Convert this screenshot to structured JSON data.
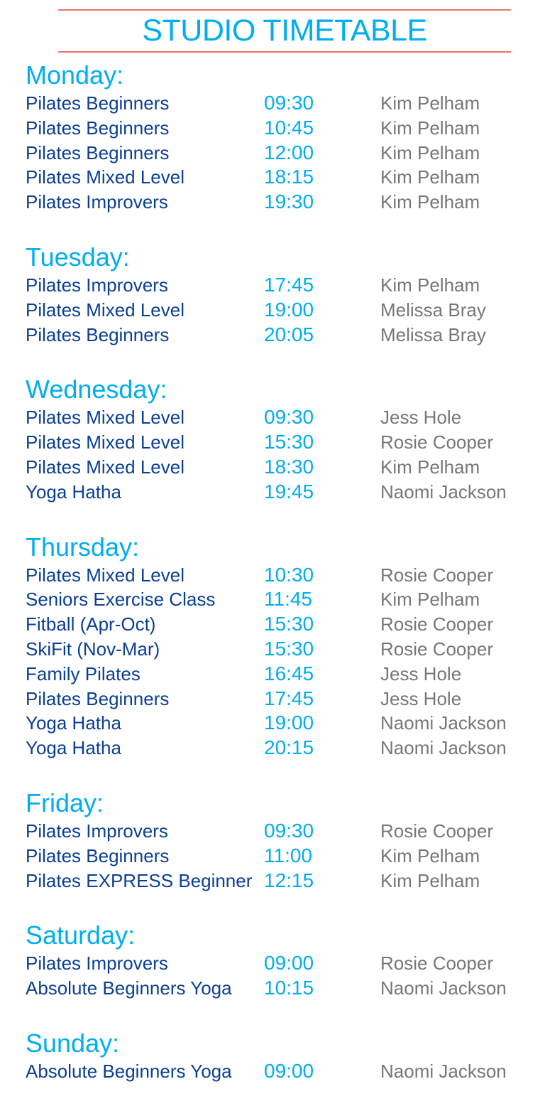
{
  "title": "STUDIO TIMETABLE",
  "colors": {
    "accent": "#00aeef",
    "class": "#0b3f94",
    "instructor": "#777777",
    "rule": "#f07070"
  },
  "days": [
    {
      "name": "Monday:",
      "classes": [
        {
          "class": "Pilates Beginners",
          "time": "09:30",
          "instructor": "Kim Pelham"
        },
        {
          "class": "Pilates Beginners",
          "time": "10:45",
          "instructor": "Kim Pelham"
        },
        {
          "class": "Pilates Beginners",
          "time": "12:00",
          "instructor": "Kim Pelham"
        },
        {
          "class": "Pilates Mixed Level",
          "time": "18:15",
          "instructor": "Kim Pelham"
        },
        {
          "class": "Pilates Improvers",
          "time": "19:30",
          "instructor": "Kim Pelham"
        }
      ]
    },
    {
      "name": "Tuesday:",
      "classes": [
        {
          "class": "Pilates Improvers",
          "time": "17:45",
          "instructor": "Kim Pelham"
        },
        {
          "class": "Pilates Mixed Level",
          "time": "19:00",
          "instructor": "Melissa Bray"
        },
        {
          "class": "Pilates Beginners",
          "time": "20:05",
          "instructor": "Melissa Bray"
        }
      ]
    },
    {
      "name": "Wednesday:",
      "classes": [
        {
          "class": "Pilates Mixed Level",
          "time": "09:30",
          "instructor": "Jess Hole"
        },
        {
          "class": "Pilates Mixed Level",
          "time": "15:30",
          "instructor": "Rosie Cooper"
        },
        {
          "class": "Pilates Mixed Level",
          "time": "18:30",
          "instructor": "Kim Pelham"
        },
        {
          "class": "Yoga Hatha",
          "time": "19:45",
          "instructor": "Naomi Jackson"
        }
      ]
    },
    {
      "name": "Thursday:",
      "classes": [
        {
          "class": "Pilates Mixed Level",
          "time": "10:30",
          "instructor": "Rosie Cooper"
        },
        {
          "class": "Seniors Exercise Class",
          "time": "11:45",
          "instructor": "Kim Pelham"
        },
        {
          "class": "Fitball (Apr-Oct)",
          "time": "15:30",
          "instructor": "Rosie Cooper"
        },
        {
          "class": "SkiFit (Nov-Mar)",
          "time": "15:30",
          "instructor": "Rosie Cooper"
        },
        {
          "class": "Family Pilates",
          "time": "16:45",
          "instructor": "Jess Hole"
        },
        {
          "class": "Pilates Beginners",
          "time": "17:45",
          "instructor": "Jess Hole"
        },
        {
          "class": "Yoga Hatha",
          "time": "19:00",
          "instructor": "Naomi Jackson"
        },
        {
          "class": "Yoga Hatha",
          "time": "20:15",
          "instructor": "Naomi Jackson"
        }
      ]
    },
    {
      "name": "Friday:",
      "classes": [
        {
          "class": "Pilates Improvers",
          "time": "09:30",
          "instructor": "Rosie Cooper"
        },
        {
          "class": "Pilates Beginners",
          "time": "11:00",
          "instructor": "Kim Pelham"
        },
        {
          "class": "Pilates EXPRESS Beginner",
          "time": "12:15",
          "instructor": "Kim Pelham"
        }
      ]
    },
    {
      "name": "Saturday:",
      "classes": [
        {
          "class": "Pilates Improvers",
          "time": "09:00",
          "instructor": "Rosie Cooper"
        },
        {
          "class": "Absolute Beginners Yoga",
          "time": "10:15",
          "instructor": "Naomi Jackson"
        }
      ]
    },
    {
      "name": "Sunday:",
      "classes": [
        {
          "class": "Absolute Beginners Yoga",
          "time": "09:00",
          "instructor": "Naomi Jackson"
        }
      ]
    }
  ]
}
